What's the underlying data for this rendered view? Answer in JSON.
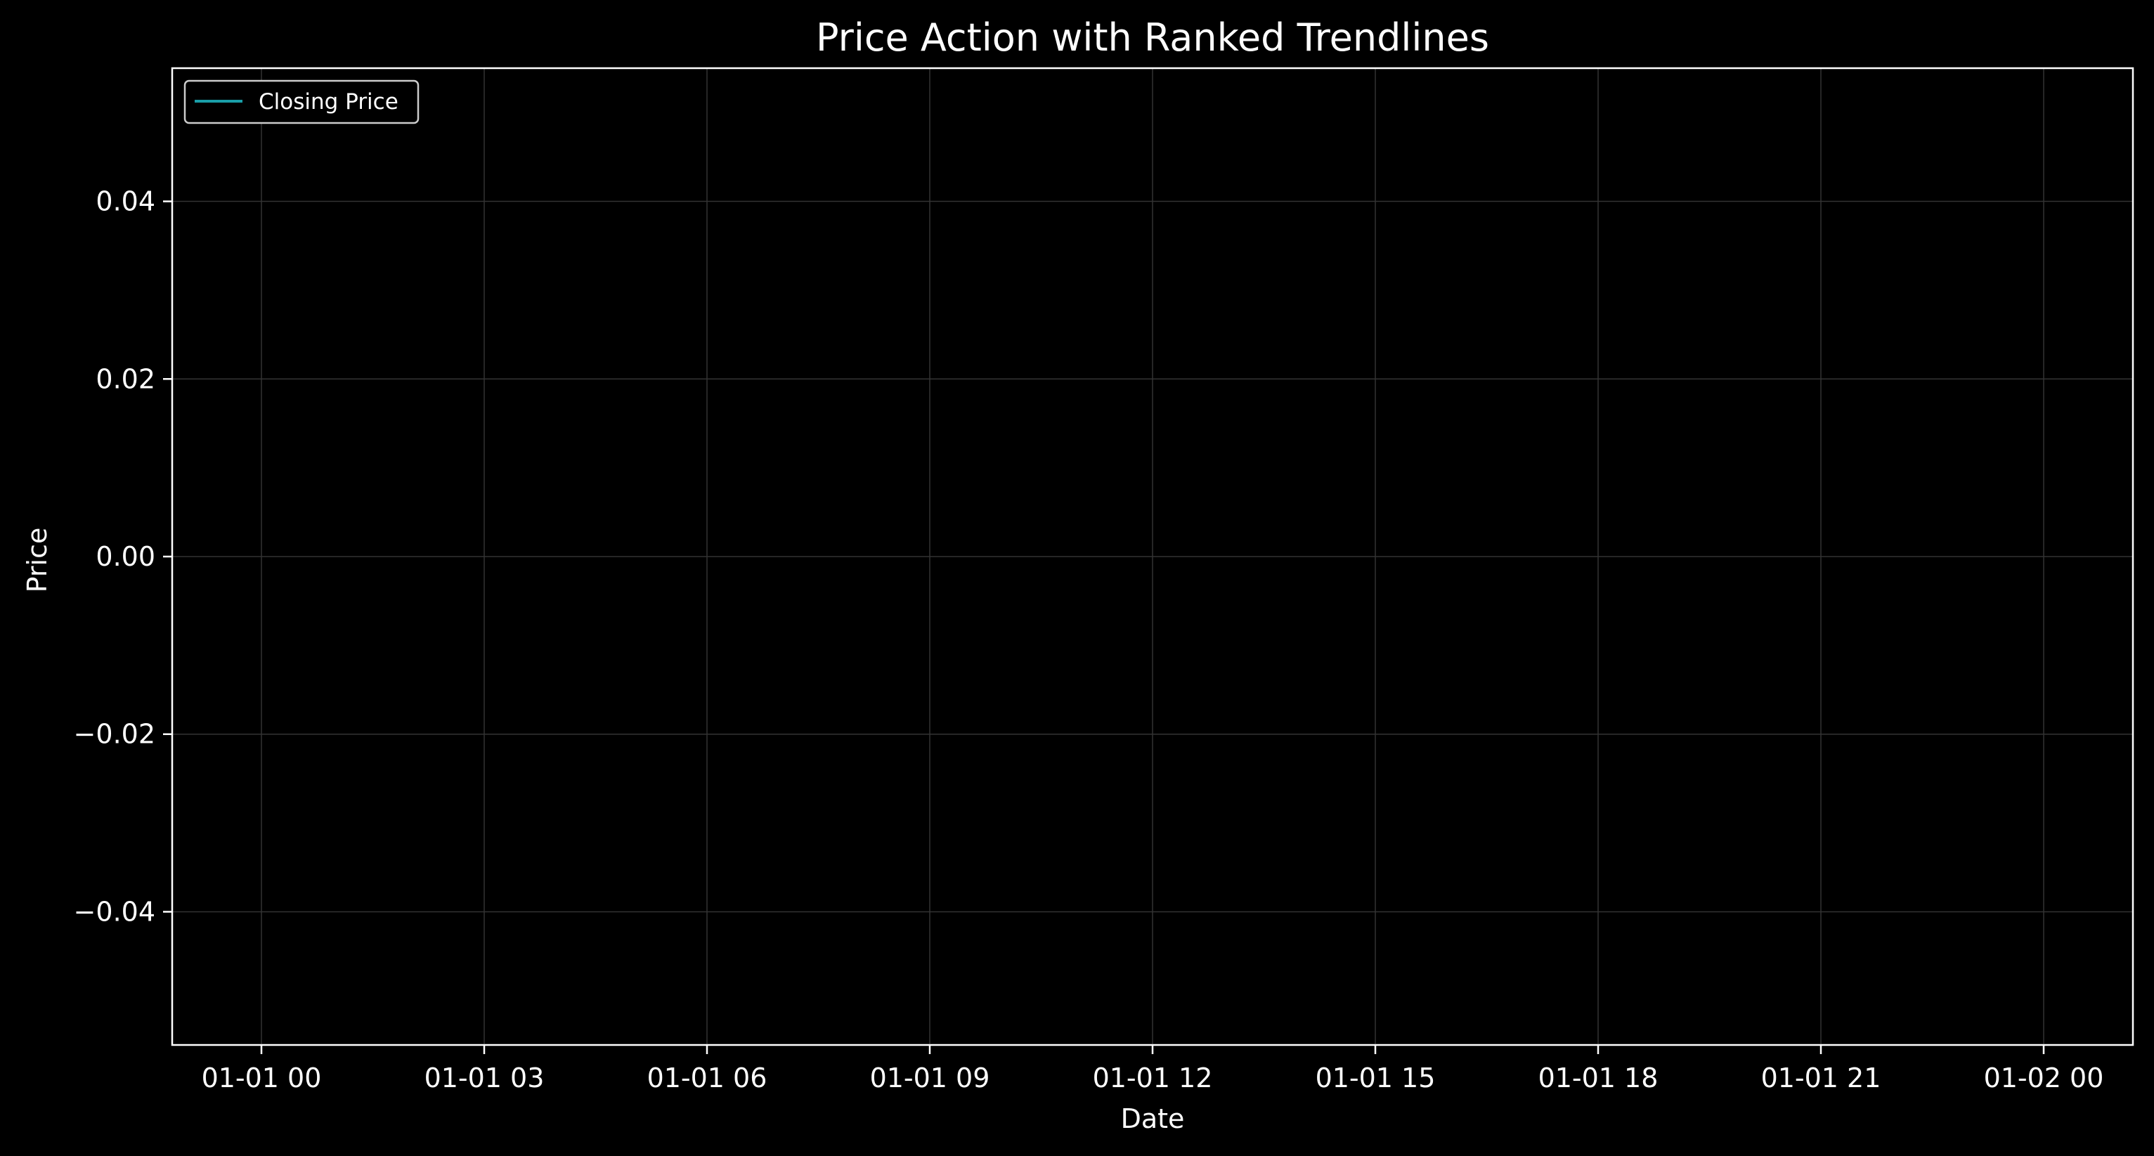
{
  "chart_data": {
    "type": "line",
    "title": "Price Action with Ranked Trendlines",
    "xlabel": "Date",
    "ylabel": "Price",
    "x_tick_labels": [
      "01-01 00",
      "01-01 03",
      "01-01 06",
      "01-01 09",
      "01-01 12",
      "01-01 15",
      "01-01 18",
      "01-01 21",
      "01-02 00"
    ],
    "y_ticks": [
      -0.04,
      -0.02,
      0.0,
      0.02,
      0.04
    ],
    "y_tick_labels": [
      "−0.04",
      "−0.02",
      "0.00",
      "0.02",
      "0.04"
    ],
    "ylim": [
      -0.055,
      0.055
    ],
    "grid": true,
    "legend_position": "top-left",
    "series": [
      {
        "name": "Closing Price",
        "color": "#1a9ea8",
        "x": [],
        "y": []
      }
    ]
  },
  "colors": {
    "background": "#000000",
    "text": "#ffffff",
    "axes": "#ffffff",
    "grid": "#333333"
  }
}
